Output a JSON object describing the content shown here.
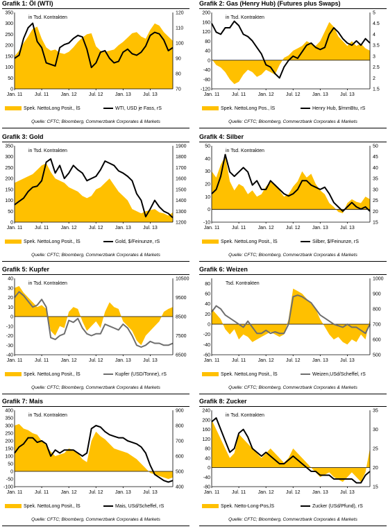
{
  "colors": {
    "area": "#FFC000",
    "line_black": "#000000",
    "line_gray": "#6e6e6e",
    "page": "#ffffff"
  },
  "source_text": "Quelle: CFTC; Bloomberg, Commerzbank Corporates & Markets",
  "chart_data": [
    {
      "type": "area",
      "title": "Grafik 1: Öl (WTI)",
      "unit_label": "in Tsd. Kontrakten",
      "x_start": "2011-01",
      "x_end": "2013-12",
      "x_labels": [
        "Jan. 11",
        "Jul. 11",
        "Jan. 12",
        "Jul. 12",
        "Jan. 13",
        "Jul. 13"
      ],
      "y_left": {
        "min": 0,
        "max": 350,
        "ticks": [
          0,
          50,
          100,
          150,
          200,
          250,
          300,
          350
        ]
      },
      "y_right": {
        "min": 70,
        "max": 120,
        "ticks": [
          70,
          80,
          90,
          100,
          110,
          120
        ]
      },
      "legend": [
        "Spek. NettoLong Posit., lS",
        "WTI, USD je Fass, rS"
      ],
      "line_color": "black",
      "series": [
        {
          "name": "Spek. NettoLong Posit., lS",
          "axis": "left",
          "values": [
            150,
            175,
            210,
            240,
            275,
            285,
            230,
            190,
            175,
            180,
            165,
            160,
            170,
            190,
            215,
            235,
            250,
            255,
            195,
            175,
            170,
            175,
            180,
            200,
            215,
            235,
            255,
            260,
            240,
            230,
            270,
            300,
            290,
            260,
            240,
            220
          ]
        },
        {
          "name": "WTI, USD je Fass, rS",
          "axis": "right",
          "values": [
            90,
            92,
            103,
            110,
            113,
            101,
            97,
            87,
            86,
            85,
            97,
            99,
            100,
            103,
            105,
            104,
            96,
            84,
            87,
            94,
            95,
            90,
            87,
            88,
            94,
            96,
            93,
            92,
            94,
            98,
            105,
            107,
            106,
            102,
            95,
            97
          ]
        }
      ]
    },
    {
      "type": "area",
      "title": "Grafik 2: Gas (Henry Hub) (Futures plus Swaps)",
      "unit_label": "in Tsd. Kontrakten",
      "x_start": "2011-01",
      "x_end": "2013-12",
      "x_labels": [
        "Jan. 11",
        "Jul. 11",
        "Jan. 12",
        "Jul. 12",
        "Jan. 13",
        "Jul. 13"
      ],
      "y_left": {
        "min": -120,
        "max": 200,
        "ticks": [
          -120,
          -80,
          -40,
          0,
          40,
          80,
          120,
          160,
          200
        ]
      },
      "y_right": {
        "min": 1.5,
        "max": 5.0,
        "ticks": [
          1.5,
          2.0,
          2.5,
          3.0,
          3.5,
          4.0,
          4.5,
          5.0
        ]
      },
      "legend": [
        "Spek. NettoLong Pos., lS",
        "Henry Hub, $/mmBtu, rS"
      ],
      "line_color": "black",
      "series": [
        {
          "name": "Spek. NettoLong Pos., lS",
          "axis": "left",
          "values": [
            5,
            -20,
            -30,
            -50,
            -80,
            -100,
            -90,
            -60,
            -40,
            -50,
            -70,
            -60,
            -40,
            -50,
            -60,
            -20,
            10,
            20,
            40,
            50,
            60,
            80,
            70,
            60,
            80,
            120,
            160,
            140,
            100,
            80,
            60,
            80,
            60,
            70,
            50,
            40
          ]
        },
        {
          "name": "Henry Hub, $/mmBtu, rS",
          "axis": "right",
          "values": [
            4.5,
            4.1,
            4.0,
            4.3,
            4.3,
            4.6,
            4.4,
            4.0,
            3.9,
            3.7,
            3.4,
            3.1,
            2.6,
            2.5,
            2.2,
            2.0,
            2.5,
            2.8,
            3.0,
            2.9,
            3.2,
            3.5,
            3.6,
            3.4,
            3.3,
            3.4,
            4.0,
            4.3,
            4.1,
            3.8,
            3.6,
            3.5,
            3.7,
            3.5,
            3.8,
            3.6
          ]
        }
      ]
    },
    {
      "type": "area",
      "title": "Grafik 3: Gold",
      "unit_label": "in Tsd. Kontrakten",
      "x_start": "2011-01",
      "x_end": "2013-12",
      "x_labels": [
        "Jan. 11",
        "Jul. 11",
        "Jan. 12",
        "Jul. 12",
        "Jan. 13",
        "Jul. 13"
      ],
      "y_left": {
        "min": 0,
        "max": 350,
        "ticks": [
          0,
          50,
          100,
          150,
          200,
          250,
          300,
          350
        ]
      },
      "y_right": {
        "min": 1200,
        "max": 1900,
        "ticks": [
          1200,
          1300,
          1400,
          1500,
          1600,
          1700,
          1800,
          1900
        ]
      },
      "legend": [
        "Spek. NettoLong Posit., lS",
        "Gold, $/Feinunze, rS"
      ],
      "line_color": "black",
      "series": [
        {
          "name": "Spek. NettoLong Posit., lS",
          "axis": "left",
          "values": [
            180,
            190,
            200,
            210,
            220,
            240,
            260,
            270,
            230,
            200,
            190,
            180,
            160,
            150,
            140,
            120,
            110,
            120,
            150,
            160,
            180,
            200,
            170,
            140,
            120,
            100,
            60,
            50,
            40,
            50,
            55,
            60,
            45,
            40,
            30,
            45
          ]
        },
        {
          "name": "Gold, $/Feinunze, rS",
          "axis": "right",
          "values": [
            1360,
            1390,
            1420,
            1480,
            1520,
            1530,
            1580,
            1750,
            1780,
            1650,
            1720,
            1600,
            1650,
            1720,
            1680,
            1650,
            1580,
            1600,
            1620,
            1680,
            1760,
            1740,
            1720,
            1670,
            1650,
            1620,
            1580,
            1460,
            1400,
            1250,
            1320,
            1400,
            1340,
            1300,
            1280,
            1240
          ]
        }
      ]
    },
    {
      "type": "area",
      "title": "Grafik 4: Silber",
      "unit_label": "in Tsd. Kontrakten",
      "x_start": "2011-01",
      "x_end": "2013-12",
      "x_labels": [
        "Jan. 11",
        "Jul. 11",
        "Jan. 12",
        "Jul. 12",
        "Jan. 13",
        "Jul. 13"
      ],
      "y_left": {
        "min": -10,
        "max": 50,
        "ticks": [
          -10,
          0,
          10,
          20,
          30,
          40,
          50
        ]
      },
      "y_right": {
        "min": 15,
        "max": 50,
        "ticks": [
          15,
          20,
          25,
          30,
          35,
          40,
          45,
          50
        ]
      },
      "legend": [
        "Spek. NettoLong Posit., lS",
        "Silber, $/Feinunze, rS"
      ],
      "line_color": "black",
      "series": [
        {
          "name": "Spek. NettoLong Posit., lS",
          "axis": "left",
          "values": [
            30,
            25,
            35,
            42,
            22,
            15,
            20,
            18,
            12,
            15,
            10,
            12,
            18,
            22,
            20,
            15,
            10,
            12,
            18,
            22,
            30,
            25,
            28,
            20,
            15,
            12,
            5,
            2,
            -2,
            -3,
            5,
            8,
            6,
            5,
            10,
            8
          ]
        },
        {
          "name": "Silber, $/Feinunze, rS",
          "axis": "right",
          "values": [
            28,
            30,
            36,
            46,
            38,
            36,
            38,
            40,
            38,
            32,
            34,
            30,
            30,
            34,
            32,
            30,
            28,
            27,
            28,
            30,
            34,
            34,
            32,
            31,
            30,
            31,
            28,
            24,
            22,
            20,
            22,
            24,
            22,
            21,
            22,
            20
          ]
        }
      ]
    },
    {
      "type": "area",
      "title": "Grafik 5: Kupfer",
      "unit_label": "in Tsd. Kontrakten",
      "x_start": "2011-01",
      "x_end": "2013-12",
      "x_labels": [
        "Jan. 11",
        "Jul. 11",
        "Jan. 12",
        "Jul. 12",
        "Jan. 13",
        "Jul. 13"
      ],
      "y_left": {
        "min": -40,
        "max": 40,
        "ticks": [
          -40,
          -30,
          -20,
          -10,
          0,
          10,
          20,
          30,
          40
        ]
      },
      "y_right": {
        "min": 6500,
        "max": 10500,
        "ticks": [
          6500,
          7500,
          8500,
          9500,
          10500
        ]
      },
      "legend": [
        "Spek. NettoLong Posit., lS",
        "Kupfer (USD/Tonne), rS"
      ],
      "line_color": "gray",
      "series": [
        {
          "name": "Spek. NettoLong Posit., lS",
          "axis": "left",
          "values": [
            30,
            32,
            25,
            20,
            15,
            10,
            12,
            8,
            -15,
            -20,
            -10,
            -12,
            5,
            10,
            8,
            -5,
            -15,
            -10,
            -5,
            -12,
            5,
            15,
            10,
            8,
            -5,
            -10,
            -15,
            -25,
            -30,
            -20,
            -15,
            -10,
            -5,
            5,
            8,
            10
          ]
        },
        {
          "name": "Kupfer (USD/Tonne), rS",
          "axis": "right",
          "values": [
            9500,
            9800,
            9600,
            9300,
            9000,
            9100,
            9400,
            9000,
            7400,
            7300,
            7500,
            7600,
            8300,
            8200,
            8400,
            7900,
            7600,
            7500,
            7600,
            7600,
            8100,
            8000,
            7900,
            7800,
            8100,
            7900,
            7500,
            7000,
            6900,
            7000,
            7200,
            7100,
            7100,
            7000,
            7000,
            7100
          ]
        }
      ]
    },
    {
      "type": "area",
      "title": "Grafik 6: Weizen",
      "unit_label": "Tsd. Kontrakten",
      "x_start": "2011-01",
      "x_end": "2013-12",
      "x_labels": [
        "Jan. 11",
        "Jul. 11",
        "Jan. 12",
        "Jul. 12",
        "Jan. 13",
        "Jul. 13"
      ],
      "y_left": {
        "min": -60,
        "max": 90,
        "ticks": [
          -60,
          -40,
          -20,
          0,
          20,
          40,
          60,
          80
        ]
      },
      "y_right": {
        "min": 500,
        "max": 1000,
        "ticks": [
          500,
          600,
          700,
          800,
          900,
          1000
        ]
      },
      "legend": [
        "Spek. NettoLong Posit., lS",
        "Weizen,USd/Scheffel, rS"
      ],
      "line_color": "gray",
      "series": [
        {
          "name": "Spek. NettoLong Posit., lS",
          "axis": "left",
          "values": [
            30,
            20,
            10,
            -10,
            -20,
            -10,
            -30,
            -20,
            -25,
            -35,
            -30,
            -25,
            -20,
            -15,
            -20,
            -25,
            -20,
            10,
            70,
            65,
            60,
            50,
            40,
            30,
            10,
            -5,
            -20,
            -30,
            -25,
            -35,
            -40,
            -30,
            -35,
            -20,
            -30,
            10
          ]
        },
        {
          "name": "Weizen,USd/Scheffel, rS",
          "axis": "right",
          "values": [
            780,
            820,
            800,
            760,
            740,
            720,
            700,
            680,
            720,
            680,
            640,
            640,
            660,
            640,
            650,
            640,
            640,
            700,
            880,
            890,
            880,
            860,
            840,
            800,
            760,
            740,
            720,
            700,
            690,
            680,
            700,
            680,
            680,
            660,
            640,
            700
          ]
        }
      ]
    },
    {
      "type": "area",
      "title": "Grafik 7: Mais",
      "unit_label": "in Tsd. Kontrakten",
      "x_start": "2011-01",
      "x_end": "2013-12",
      "x_labels": [
        "Jan. 11",
        "Jul. 11",
        "Jan. 12",
        "Jul. 12",
        "Jan. 13",
        "Jul. 13"
      ],
      "y_left": {
        "min": -100,
        "max": 400,
        "ticks": [
          -100,
          -50,
          0,
          50,
          100,
          150,
          200,
          250,
          300,
          350,
          400
        ]
      },
      "y_right": {
        "min": 400,
        "max": 900,
        "ticks": [
          400,
          500,
          600,
          700,
          800,
          900
        ]
      },
      "legend": [
        "Spek. NettoLong Posit., lS",
        "Mais, USd/Scheffel, rS"
      ],
      "line_color": "black",
      "series": [
        {
          "name": "Spek. NettoLong Posit., lS",
          "axis": "left",
          "values": [
            300,
            310,
            280,
            270,
            250,
            240,
            200,
            170,
            130,
            100,
            110,
            120,
            150,
            140,
            120,
            80,
            60,
            200,
            260,
            230,
            210,
            180,
            150,
            140,
            130,
            120,
            100,
            80,
            50,
            20,
            -10,
            -20,
            -30,
            -40,
            -50,
            -40
          ]
        },
        {
          "name": "Mais, USd/Scheffel, rS",
          "axis": "right",
          "values": [
            620,
            660,
            680,
            720,
            720,
            690,
            700,
            680,
            600,
            640,
            620,
            640,
            640,
            640,
            620,
            600,
            620,
            780,
            800,
            790,
            760,
            740,
            730,
            720,
            720,
            700,
            690,
            680,
            660,
            620,
            540,
            480,
            460,
            440,
            430,
            440
          ]
        }
      ]
    },
    {
      "type": "area",
      "title": "Grafik 8: Zucker",
      "unit_label": "in Tsd. Kontrakten",
      "x_start": "2011-01",
      "x_end": "2013-12",
      "x_labels": [
        "Jan. 11",
        "Jul. 11",
        "Jan. 12",
        "Jul. 12",
        "Jan. 13",
        "Jul. 13"
      ],
      "y_left": {
        "min": -80,
        "max": 240,
        "ticks": [
          -80,
          -40,
          0,
          40,
          80,
          120,
          160,
          200,
          240
        ]
      },
      "y_right": {
        "min": 15,
        "max": 35,
        "ticks": [
          15,
          20,
          25,
          30,
          35
        ]
      },
      "legend": [
        "Spek. Netto-Long-Pos,lS",
        "Zucker (USd/Pfund), rS"
      ],
      "line_color": "black",
      "series": [
        {
          "name": "Spek. Netto-Long-Pos,lS",
          "axis": "left",
          "values": [
            200,
            160,
            120,
            80,
            40,
            60,
            140,
            120,
            100,
            80,
            60,
            40,
            60,
            80,
            60,
            40,
            20,
            40,
            80,
            60,
            40,
            20,
            0,
            -20,
            -40,
            -30,
            -20,
            -40,
            -50,
            -60,
            -40,
            -20,
            -40,
            -60,
            -20,
            80
          ]
        },
        {
          "name": "Zucker (USd/Pfund), rS",
          "axis": "right",
          "values": [
            32,
            33,
            30,
            27,
            24,
            25,
            29,
            30,
            28,
            25,
            24,
            23,
            24,
            23,
            22,
            21,
            21,
            22,
            23,
            22,
            21,
            20,
            19,
            19,
            18,
            18,
            18,
            17,
            17,
            17,
            17,
            17,
            16,
            16,
            18,
            19
          ]
        }
      ]
    }
  ]
}
